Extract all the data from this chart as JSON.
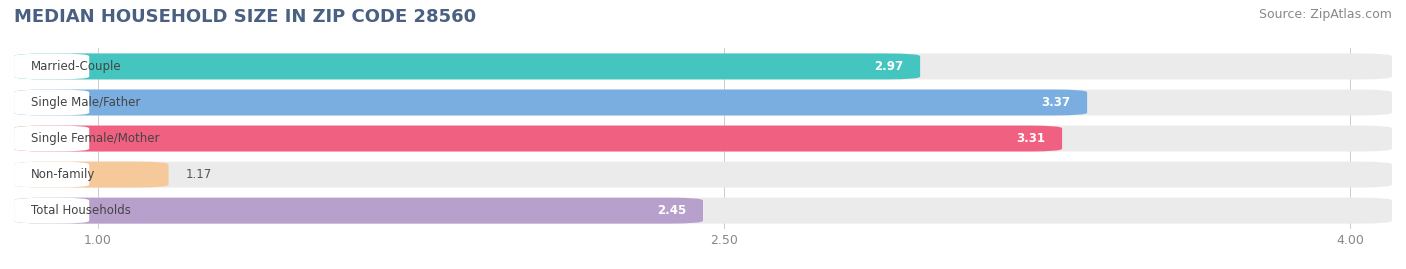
{
  "title": "MEDIAN HOUSEHOLD SIZE IN ZIP CODE 28560",
  "source": "Source: ZipAtlas.com",
  "categories": [
    "Married-Couple",
    "Single Male/Father",
    "Single Female/Mother",
    "Non-family",
    "Total Households"
  ],
  "values": [
    2.97,
    3.37,
    3.31,
    1.17,
    2.45
  ],
  "bar_colors": [
    "#45C5C0",
    "#7BAEE0",
    "#F06080",
    "#F5C99A",
    "#B8A0CC"
  ],
  "xlim_data": [
    0.8,
    4.1
  ],
  "xlim_display": [
    0.8,
    4.1
  ],
  "xticks": [
    1.0,
    2.5,
    4.0
  ],
  "xticklabels": [
    "1.00",
    "2.50",
    "4.00"
  ],
  "title_fontsize": 13,
  "source_fontsize": 9,
  "label_fontsize": 8.5,
  "value_fontsize": 8.5,
  "background_color": "#ffffff",
  "bar_bg_color": "#ebebeb",
  "bar_height": 0.72,
  "bar_gap": 0.28
}
